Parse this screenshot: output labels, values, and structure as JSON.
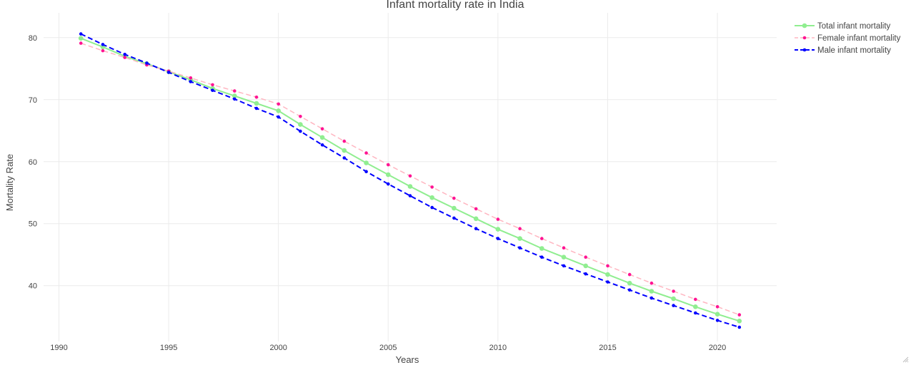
{
  "chart_data": {
    "type": "line",
    "title": "Infant mortality rate in India",
    "xlabel": "Years",
    "ylabel": "Mortality Rate",
    "xlim": [
      1989.3,
      1990.0
    ],
    "x_range": [
      1989.3,
      2022.7
    ],
    "ylim": [
      31.0,
      84.0
    ],
    "x_ticks": [
      1990,
      1995,
      2000,
      2005,
      2010,
      2015,
      2020
    ],
    "y_ticks": [
      40,
      50,
      60,
      70,
      80
    ],
    "grid": true,
    "legend_position": "top-right",
    "x": [
      1991,
      1992,
      1993,
      1994,
      1995,
      1996,
      1997,
      1998,
      1999,
      2000,
      2001,
      2002,
      2003,
      2004,
      2005,
      2006,
      2007,
      2008,
      2009,
      2010,
      2011,
      2012,
      2013,
      2014,
      2015,
      2016,
      2017,
      2018,
      2019,
      2020,
      2021
    ],
    "series": [
      {
        "name": "Total infant mortality",
        "color": "#90ee90",
        "dash": "solid",
        "values": [
          79.9,
          78.5,
          77.0,
          75.8,
          74.5,
          73.2,
          71.8,
          70.6,
          69.4,
          68.2,
          66.0,
          63.9,
          61.8,
          59.8,
          57.9,
          56.0,
          54.2,
          52.5,
          50.8,
          49.1,
          47.6,
          46.0,
          44.6,
          43.2,
          41.8,
          40.4,
          39.1,
          37.9,
          36.6,
          35.4,
          34.3
        ]
      },
      {
        "name": "Female infant mortality",
        "color": "#ff1493",
        "line_color": "#ffb6c1",
        "dash": "dashed",
        "values": [
          79.1,
          77.9,
          76.8,
          75.6,
          74.6,
          73.5,
          72.4,
          71.4,
          70.4,
          69.3,
          67.3,
          65.3,
          63.3,
          61.4,
          59.5,
          57.7,
          55.9,
          54.1,
          52.4,
          50.7,
          49.2,
          47.6,
          46.1,
          44.6,
          43.2,
          41.8,
          40.4,
          39.1,
          37.8,
          36.6,
          35.3
        ]
      },
      {
        "name": "Male infant mortality",
        "color": "#0000ff",
        "dash": "dashed",
        "values": [
          80.6,
          78.9,
          77.3,
          75.9,
          74.4,
          72.9,
          71.5,
          70.1,
          68.6,
          67.2,
          64.9,
          62.7,
          60.6,
          58.4,
          56.4,
          54.5,
          52.6,
          50.9,
          49.2,
          47.6,
          46.1,
          44.6,
          43.2,
          41.9,
          40.6,
          39.3,
          38.0,
          36.8,
          35.6,
          34.4,
          33.3
        ]
      }
    ]
  }
}
